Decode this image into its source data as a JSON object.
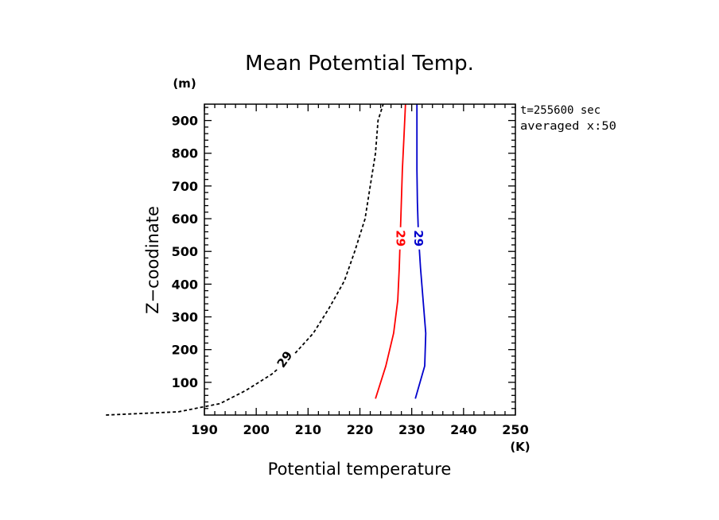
{
  "chart_data": {
    "type": "line",
    "title": "Mean Potemtial Temp.",
    "xlabel": "Potential temperature",
    "ylabel": "Z−coodinate",
    "x_unit": "(K)",
    "y_unit": "(m)",
    "xlim": [
      190,
      250
    ],
    "ylim": [
      0,
      950
    ],
    "xticks": [
      190,
      200,
      210,
      220,
      230,
      240,
      250
    ],
    "yticks": [
      100,
      200,
      300,
      400,
      500,
      600,
      700,
      800,
      900
    ],
    "annotations": [
      "t=255600 sec",
      "averaged  x:50"
    ],
    "series": [
      {
        "color": "#000000",
        "dashed": true,
        "label": "29",
        "points": [
          [
            171,
            0
          ],
          [
            185,
            10
          ],
          [
            193,
            35
          ],
          [
            198,
            75
          ],
          [
            203,
            125
          ],
          [
            207,
            180
          ],
          [
            211,
            250
          ],
          [
            214,
            325
          ],
          [
            217,
            410
          ],
          [
            219,
            500
          ],
          [
            221,
            600
          ],
          [
            222,
            700
          ],
          [
            223,
            800
          ],
          [
            223.5,
            900
          ],
          [
            224.5,
            950
          ]
        ]
      },
      {
        "color": "#ff0000",
        "dashed": false,
        "label": "29",
        "points": [
          [
            223,
            50
          ],
          [
            225,
            150
          ],
          [
            226.5,
            250
          ],
          [
            227.3,
            350
          ],
          [
            227.6,
            450
          ],
          [
            227.8,
            550
          ],
          [
            228,
            650
          ],
          [
            228.2,
            750
          ],
          [
            228.5,
            850
          ],
          [
            228.8,
            950
          ]
        ]
      },
      {
        "color": "#0000cc",
        "dashed": false,
        "label": "29",
        "points": [
          [
            230.7,
            50
          ],
          [
            232.5,
            150
          ],
          [
            232.7,
            250
          ],
          [
            232.2,
            350
          ],
          [
            231.7,
            450
          ],
          [
            231.3,
            550
          ],
          [
            231.1,
            650
          ],
          [
            231,
            750
          ],
          [
            231,
            850
          ],
          [
            231,
            950
          ]
        ]
      }
    ]
  }
}
